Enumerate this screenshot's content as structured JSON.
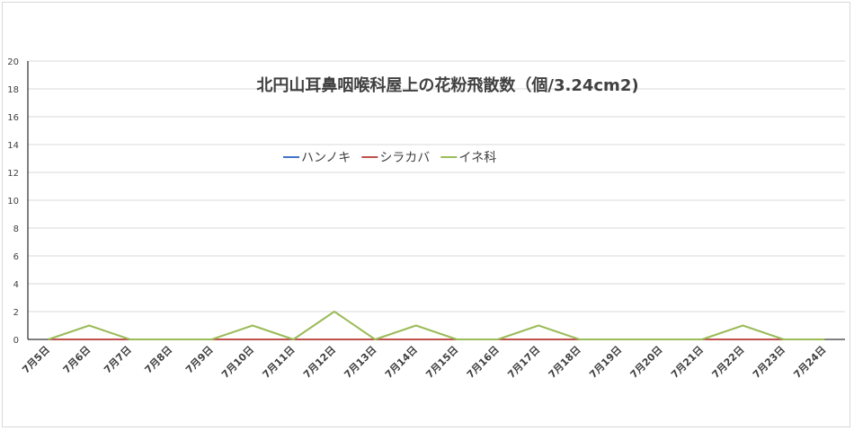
{
  "chart_data": {
    "type": "line",
    "title": "北円山耳鼻咽喉科屋上の花粉飛散数（個/3.24cm2)",
    "xlabel": "",
    "ylabel": "",
    "categories": [
      "7月5日",
      "7月6日",
      "7月7日",
      "7月8日",
      "7月9日",
      "7月10日",
      "7月11日",
      "7月12日",
      "7月13日",
      "7月14日",
      "7月15日",
      "7月16日",
      "7月17日",
      "7月18日",
      "7月19日",
      "7月20日",
      "7月21日",
      "7月22日",
      "7月23日",
      "7月24日"
    ],
    "ylim": [
      0,
      20
    ],
    "yticks": [
      0,
      2,
      4,
      6,
      8,
      10,
      12,
      14,
      16,
      18,
      20
    ],
    "grid": true,
    "legend_position": "top-center",
    "series": [
      {
        "name": "ハンノキ",
        "color": "#4472c4",
        "values": [
          0,
          0,
          0,
          0,
          0,
          0,
          0,
          0,
          0,
          0,
          0,
          0,
          0,
          0,
          0,
          0,
          0,
          0,
          0,
          0
        ]
      },
      {
        "name": "シラカバ",
        "color": "#c0504d",
        "values": [
          0,
          0,
          0,
          0,
          0,
          0,
          0,
          0,
          0,
          0,
          0,
          0,
          0,
          0,
          0,
          0,
          0,
          0,
          0,
          0
        ]
      },
      {
        "name": "イネ科",
        "color": "#9bbb59",
        "values": [
          0,
          1,
          0,
          0,
          0,
          1,
          0,
          2,
          0,
          1,
          0,
          0,
          1,
          0,
          0,
          0,
          0,
          1,
          0,
          0
        ]
      }
    ]
  }
}
